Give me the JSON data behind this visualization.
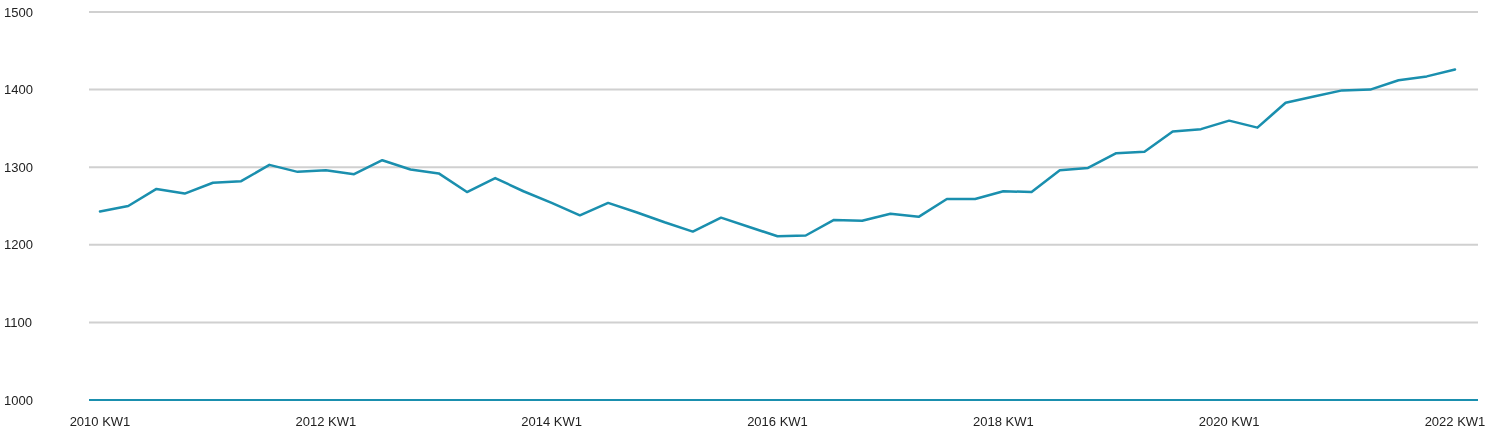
{
  "chart_data": {
    "type": "line",
    "categories": [
      "2010 KW1",
      null,
      null,
      null,
      null,
      null,
      null,
      null,
      "2012 KW1",
      null,
      null,
      null,
      null,
      null,
      null,
      null,
      "2014 KW1",
      null,
      null,
      null,
      null,
      null,
      null,
      null,
      "2016 KW1",
      null,
      null,
      null,
      null,
      null,
      null,
      null,
      "2018 KW1",
      null,
      null,
      null,
      null,
      null,
      null,
      null,
      "2020 KW1",
      null,
      null,
      null,
      null,
      null,
      null,
      null,
      "2022 KW1"
    ],
    "series": [
      {
        "color": "#1a8fae",
        "values": [
          1243,
          1250,
          1272,
          1266,
          1280,
          1282,
          1303,
          1294,
          1296,
          1291,
          1309,
          1297,
          1292,
          1268,
          1286,
          1269,
          1254,
          1238,
          1254,
          1242,
          1229,
          1217,
          1235,
          1223,
          1211,
          1212,
          1232,
          1231,
          1240,
          1236,
          1259,
          1259,
          1269,
          1268,
          1296,
          1299,
          1318,
          1320,
          1346,
          1349,
          1360,
          1351,
          1383,
          1391,
          1399,
          1400,
          1412,
          1417,
          1426
        ]
      }
    ],
    "ylim": [
      1000,
      1500
    ],
    "yticks": [
      1000,
      1100,
      1200,
      1300,
      1400,
      1500
    ],
    "grid": "y",
    "marker": "none",
    "line_style": "solid"
  }
}
